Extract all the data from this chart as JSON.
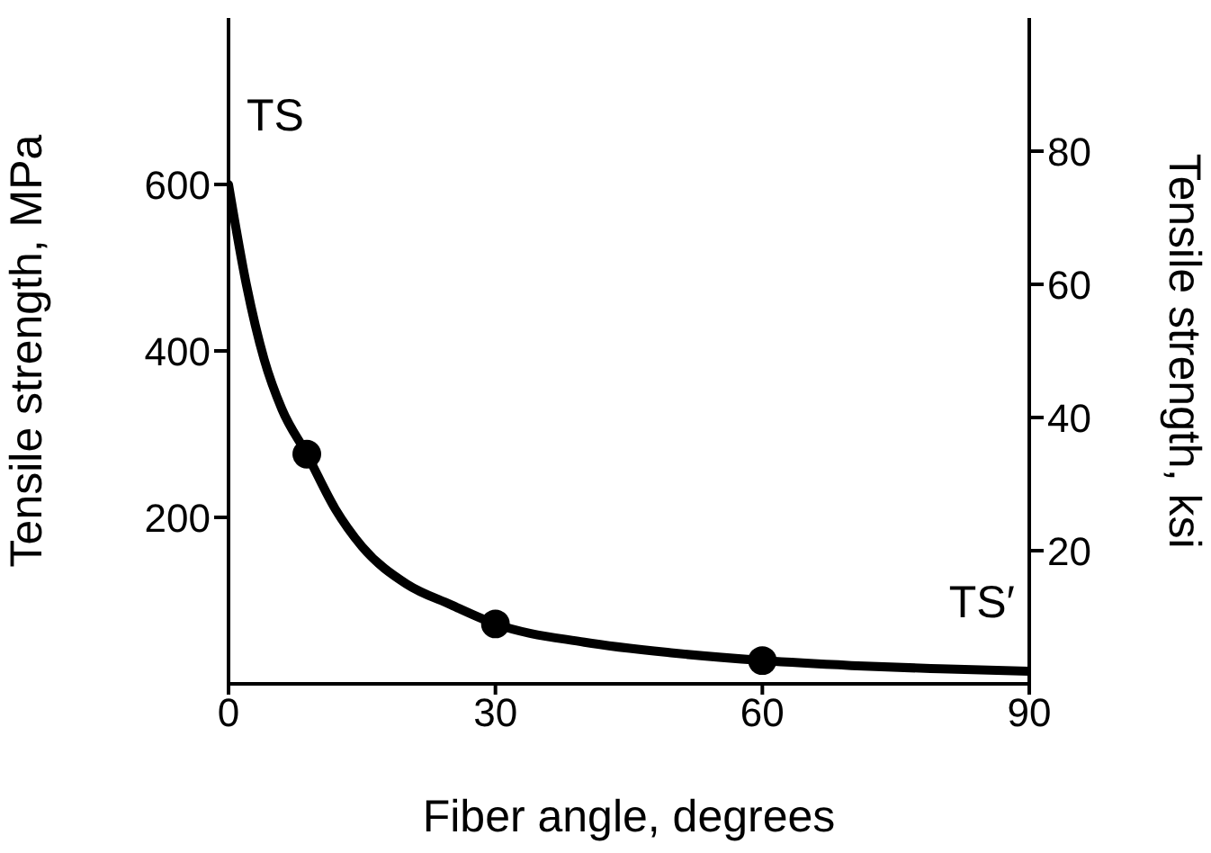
{
  "chart_data": {
    "type": "line",
    "xlabel": "Fiber angle, degrees",
    "ylabel": "Tensile strength, MPa",
    "y2label": "Tensile strength, ksi",
    "xlim": [
      0,
      90
    ],
    "xticks": [
      0,
      30,
      60,
      90
    ],
    "ylim": [
      0,
      800
    ],
    "yticks": [
      200,
      400,
      600
    ],
    "y2lim": [
      0,
      100
    ],
    "y2ticks": [
      20,
      40,
      60,
      80
    ],
    "grid": false,
    "series": [
      {
        "color": "#000000",
        "marker": "none",
        "x": [
          0,
          2,
          4,
          6,
          8.8,
          12,
          15,
          20,
          25,
          30,
          40,
          50,
          60,
          70,
          80,
          90
        ],
        "values": [
          600,
          480,
          390,
          330,
          276,
          210,
          165,
          120,
          95,
          72,
          50,
          37,
          28,
          22,
          18,
          15
        ]
      },
      {
        "type": "scatter",
        "color": "#000000",
        "marker": "circle",
        "x": [
          8.8,
          30,
          60
        ],
        "values": [
          276,
          72,
          28
        ]
      }
    ],
    "annotations": [
      {
        "text": "TS",
        "x": 0,
        "y": 600
      },
      {
        "text": "TS′",
        "x": 90,
        "y": 15
      }
    ]
  }
}
